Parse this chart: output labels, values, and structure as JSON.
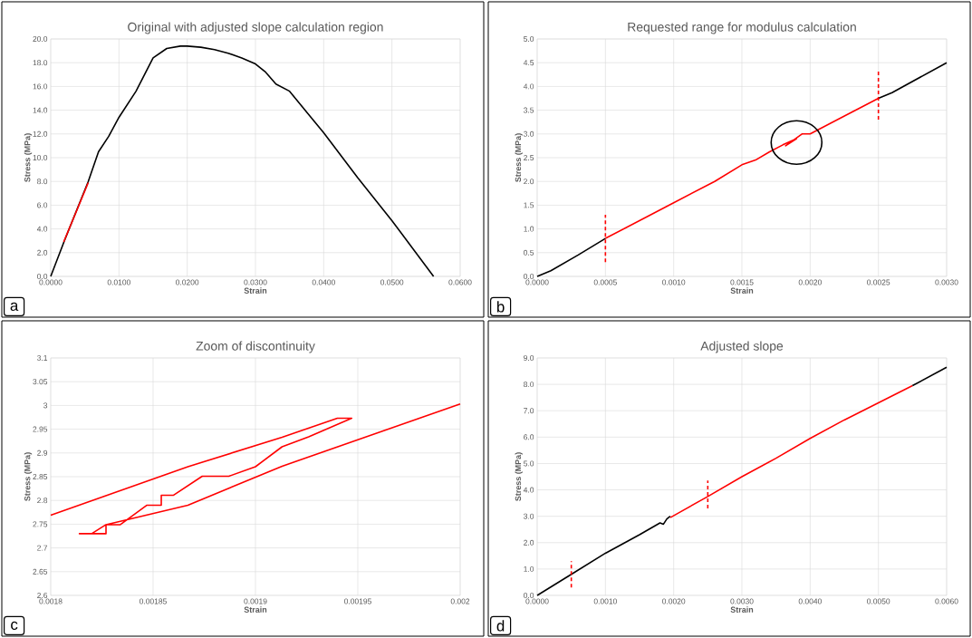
{
  "chart_data": [
    {
      "type": "line",
      "title": "Original with adjusted slope calculation region",
      "xlabel": "Strain",
      "ylabel": "Stress (MPa)",
      "grid": true,
      "xlim": [
        0,
        0.06
      ],
      "ylim": [
        0,
        20
      ],
      "xticks": [
        {
          "value": 0,
          "label": "0.0000"
        },
        {
          "value": 0.01,
          "label": "0.0100"
        },
        {
          "value": 0.02,
          "label": "0.0200"
        },
        {
          "value": 0.03,
          "label": "0.0300"
        },
        {
          "value": 0.04,
          "label": "0.0400"
        },
        {
          "value": 0.05,
          "label": "0.0500"
        },
        {
          "value": 0.06,
          "label": "0.0600"
        }
      ],
      "yticks": [
        {
          "value": 0,
          "label": "0.0"
        },
        {
          "value": 2,
          "label": "2.0"
        },
        {
          "value": 4,
          "label": "4.0"
        },
        {
          "value": 6,
          "label": "6.0"
        },
        {
          "value": 8,
          "label": "8.0"
        },
        {
          "value": 10,
          "label": "10.0"
        },
        {
          "value": 12,
          "label": "12.0"
        },
        {
          "value": 14,
          "label": "14.0"
        },
        {
          "value": 16,
          "label": "16.0"
        },
        {
          "value": 18,
          "label": "18.0"
        },
        {
          "value": 20,
          "label": "20.0"
        }
      ],
      "series": [
        {
          "color": "#000000",
          "x": [
            0,
            0.002,
            0.0055,
            0.007,
            0.0085,
            0.01,
            0.0125,
            0.015,
            0.017,
            0.019,
            0.02,
            0.022,
            0.024,
            0.026,
            0.028,
            0.03,
            0.0315,
            0.033,
            0.035,
            0.038,
            0.04,
            0.045,
            0.05,
            0.0561
          ],
          "values": [
            0,
            3,
            8,
            10.5,
            11.8,
            13.4,
            15.6,
            18.4,
            19.2,
            19.4,
            19.4,
            19.3,
            19.1,
            18.8,
            18.4,
            17.9,
            17.2,
            16.2,
            15.6,
            13.5,
            12.1,
            8.3,
            4.7,
            0
          ]
        },
        {
          "color": "#ff0000",
          "x": [
            0.0019,
            0.0055
          ],
          "values": [
            2.9,
            7.9
          ]
        }
      ],
      "annotations": [
        "a"
      ]
    },
    {
      "type": "line",
      "title": "Requested range for modulus calculation",
      "xlabel": "Strain",
      "ylabel": "Stress (MPa)",
      "grid": true,
      "xlim": [
        0,
        0.003
      ],
      "ylim": [
        0,
        5
      ],
      "xticks": [
        {
          "value": 0,
          "label": "0.0000"
        },
        {
          "value": 0.0005,
          "label": "0.0005"
        },
        {
          "value": 0.001,
          "label": "0.0010"
        },
        {
          "value": 0.0015,
          "label": "0.0015"
        },
        {
          "value": 0.002,
          "label": "0.0020"
        },
        {
          "value": 0.0025,
          "label": "0.0025"
        },
        {
          "value": 0.003,
          "label": "0.0030"
        }
      ],
      "yticks": [
        {
          "value": 0,
          "label": "0.0"
        },
        {
          "value": 0.5,
          "label": "0.5"
        },
        {
          "value": 1,
          "label": "1.0"
        },
        {
          "value": 1.5,
          "label": "1.5"
        },
        {
          "value": 2,
          "label": "2.0"
        },
        {
          "value": 2.5,
          "label": "2.5"
        },
        {
          "value": 3,
          "label": "3.0"
        },
        {
          "value": 3.5,
          "label": "3.5"
        },
        {
          "value": 4,
          "label": "4.0"
        },
        {
          "value": 4.5,
          "label": "4.5"
        },
        {
          "value": 5,
          "label": "5.0"
        }
      ],
      "series": [
        {
          "color": "#000000",
          "x": [
            0,
            0.0001,
            0.0003,
            0.0005
          ],
          "values": [
            0,
            0.12,
            0.45,
            0.8
          ]
        },
        {
          "color": "#ff0000",
          "x": [
            0.0005,
            0.0008,
            0.001,
            0.0013,
            0.0015,
            0.0016,
            0.0017,
            0.0018,
            0.0019,
            0.00182,
            0.00194,
            0.002,
            0.0022,
            0.0025
          ],
          "values": [
            0.8,
            1.25,
            1.55,
            2.0,
            2.35,
            2.45,
            2.62,
            2.77,
            2.9,
            2.75,
            3.0,
            3.0,
            3.3,
            3.75
          ]
        },
        {
          "color": "#000000",
          "x": [
            0.0025,
            0.0026,
            0.003
          ],
          "values": [
            3.75,
            3.87,
            4.5
          ]
        },
        {
          "color": "#ff0000",
          "line_style": "dashed",
          "x": [
            0.0005,
            0.0005
          ],
          "values": [
            0.3,
            1.3
          ]
        },
        {
          "color": "#ff0000",
          "line_style": "dashed",
          "x": [
            0.0025,
            0.0025
          ],
          "values": [
            3.3,
            4.35
          ]
        }
      ],
      "annotations": [
        "b"
      ]
    },
    {
      "type": "line",
      "title": "Zoom of discontinuity",
      "xlabel": "Strain",
      "ylabel": "Stress (MPa)",
      "grid": true,
      "xlim": [
        0.0018,
        0.002
      ],
      "ylim": [
        2.6,
        3.1
      ],
      "xticks": [
        0.0018,
        0.00185,
        0.0019,
        0.00195,
        0.002
      ],
      "yticks": [
        2.6,
        2.65,
        2.7,
        2.75,
        2.8,
        2.85,
        2.9,
        2.95,
        3,
        3.05,
        3.1
      ],
      "series": [
        {
          "color": "#ff0000",
          "x": [
            0.0018,
            0.001867,
            0.001913,
            0.00194,
            0.001947,
            0.001926,
            0.001913,
            0.0019,
            0.001887,
            0.001874,
            0.00186,
            0.001854,
            0.001854,
            0.001847,
            0.001834,
            0.001827,
            0.001827,
            0.001814,
            0.00182,
            0.001827,
            0.001867,
            0.001913,
            0.002
          ],
          "values": [
            2.769,
            2.871,
            2.933,
            2.973,
            2.973,
            2.934,
            2.913,
            2.871,
            2.851,
            2.851,
            2.811,
            2.811,
            2.79,
            2.79,
            2.749,
            2.749,
            2.73,
            2.73,
            2.73,
            2.749,
            2.79,
            2.872,
            3.003
          ]
        }
      ],
      "annotations": [
        "c"
      ]
    },
    {
      "type": "line",
      "title": "Adjusted slope",
      "xlabel": "Strain",
      "ylabel": "Stress (MPa)",
      "grid": true,
      "xlim": [
        0,
        0.006
      ],
      "ylim": [
        0,
        9
      ],
      "xticks": [
        {
          "value": 0,
          "label": "0.0000"
        },
        {
          "value": 0.001,
          "label": "0.0010"
        },
        {
          "value": 0.002,
          "label": "0.0020"
        },
        {
          "value": 0.003,
          "label": "0.0030"
        },
        {
          "value": 0.004,
          "label": "0.0040"
        },
        {
          "value": 0.005,
          "label": "0.0050"
        },
        {
          "value": 0.006,
          "label": "0.0060"
        }
      ],
      "yticks": [
        {
          "value": 0,
          "label": "0.0"
        },
        {
          "value": 1,
          "label": "1.0"
        },
        {
          "value": 2,
          "label": "2.0"
        },
        {
          "value": 3,
          "label": "3.0"
        },
        {
          "value": 4,
          "label": "4.0"
        },
        {
          "value": 5,
          "label": "5.0"
        },
        {
          "value": 6,
          "label": "6.0"
        },
        {
          "value": 7,
          "label": "7.0"
        },
        {
          "value": 8,
          "label": "8.0"
        },
        {
          "value": 9,
          "label": "9.0"
        }
      ],
      "series": [
        {
          "color": "#000000",
          "x": [
            0,
            0.0005,
            0.001,
            0.0015,
            0.0018,
            0.00185,
            0.0019,
            0.00195
          ],
          "values": [
            0,
            0.8,
            1.6,
            2.3,
            2.75,
            2.7,
            2.9,
            3.0
          ]
        },
        {
          "color": "#ff0000",
          "x": [
            0.00195,
            0.0025,
            0.003,
            0.0035,
            0.004,
            0.0045,
            0.005,
            0.0055
          ],
          "values": [
            2.95,
            3.75,
            4.5,
            5.2,
            5.95,
            6.65,
            7.3,
            7.95
          ]
        },
        {
          "color": "#000000",
          "x": [
            0.0055,
            0.006
          ],
          "values": [
            7.95,
            8.65
          ]
        },
        {
          "color": "#ff0000",
          "line_style": "dashed",
          "x": [
            0.0005,
            0.0005
          ],
          "values": [
            0.3,
            1.3
          ]
        },
        {
          "color": "#ff0000",
          "line_style": "dashed",
          "x": [
            0.0025,
            0.0025
          ],
          "values": [
            3.3,
            4.35
          ]
        }
      ],
      "annotations": [
        "d"
      ]
    }
  ]
}
